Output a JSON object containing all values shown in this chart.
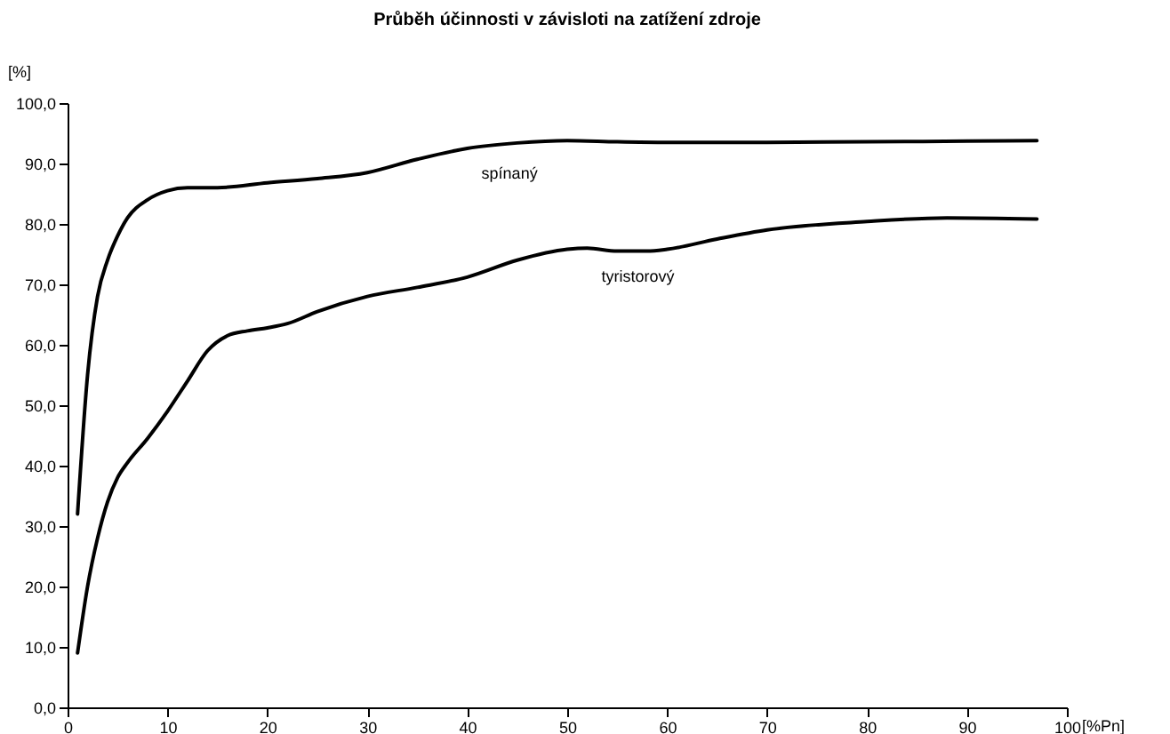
{
  "chart_data": {
    "type": "line",
    "title": "Průběh účinnosti v závisloti na zatížení zdroje",
    "xlabel": "[%Pn]",
    "ylabel": "[%]",
    "series": [
      {
        "name": "spínaný",
        "color": "#000000",
        "x": [
          1,
          2,
          3,
          4,
          5,
          6,
          8,
          10,
          12,
          15,
          20,
          25,
          30,
          35,
          40,
          45,
          50,
          55,
          60,
          70,
          80,
          90,
          97
        ],
        "values": [
          32,
          55,
          68,
          74,
          78,
          81,
          84,
          85.5,
          86,
          86,
          86.8,
          87.5,
          88.5,
          90.7,
          92.5,
          93.4,
          93.8,
          93.6,
          93.5,
          93.5,
          93.6,
          93.7,
          93.8
        ]
      },
      {
        "name": "tyristorový",
        "color": "#000000",
        "x": [
          1,
          2,
          3,
          4,
          5,
          6,
          8,
          10,
          12,
          14,
          16,
          18,
          20,
          22,
          25,
          30,
          35,
          40,
          45,
          50,
          52,
          55,
          58,
          60,
          65,
          70,
          80,
          88,
          97
        ],
        "values": [
          9,
          20,
          28,
          34,
          38,
          40.5,
          44.5,
          49,
          54,
          59,
          61.5,
          62.3,
          62.8,
          63.5,
          65.5,
          68,
          69.5,
          71.2,
          74,
          75.8,
          76,
          75.5,
          75.5,
          75.8,
          77.5,
          79,
          80.4,
          81,
          80.8
        ]
      }
    ],
    "xlim": [
      0,
      100
    ],
    "xticks": [
      0,
      10,
      20,
      30,
      40,
      50,
      60,
      70,
      80,
      90,
      100
    ],
    "ylim": [
      0,
      100
    ],
    "yticks": [
      {
        "value": 0,
        "label": "0,0"
      },
      {
        "value": 10,
        "label": "10,0"
      },
      {
        "value": 20,
        "label": "20,0"
      },
      {
        "value": 30,
        "label": "30,0"
      },
      {
        "value": 40,
        "label": "40,0"
      },
      {
        "value": 50,
        "label": "50,0"
      },
      {
        "value": 60,
        "label": "60,0"
      },
      {
        "value": 70,
        "label": "70,0"
      },
      {
        "value": 80,
        "label": "80,0"
      },
      {
        "value": 90,
        "label": "90,0"
      },
      {
        "value": 100,
        "label": "100,0"
      }
    ],
    "grid": false,
    "legend": false,
    "marker": "none",
    "line_style": "solid"
  }
}
